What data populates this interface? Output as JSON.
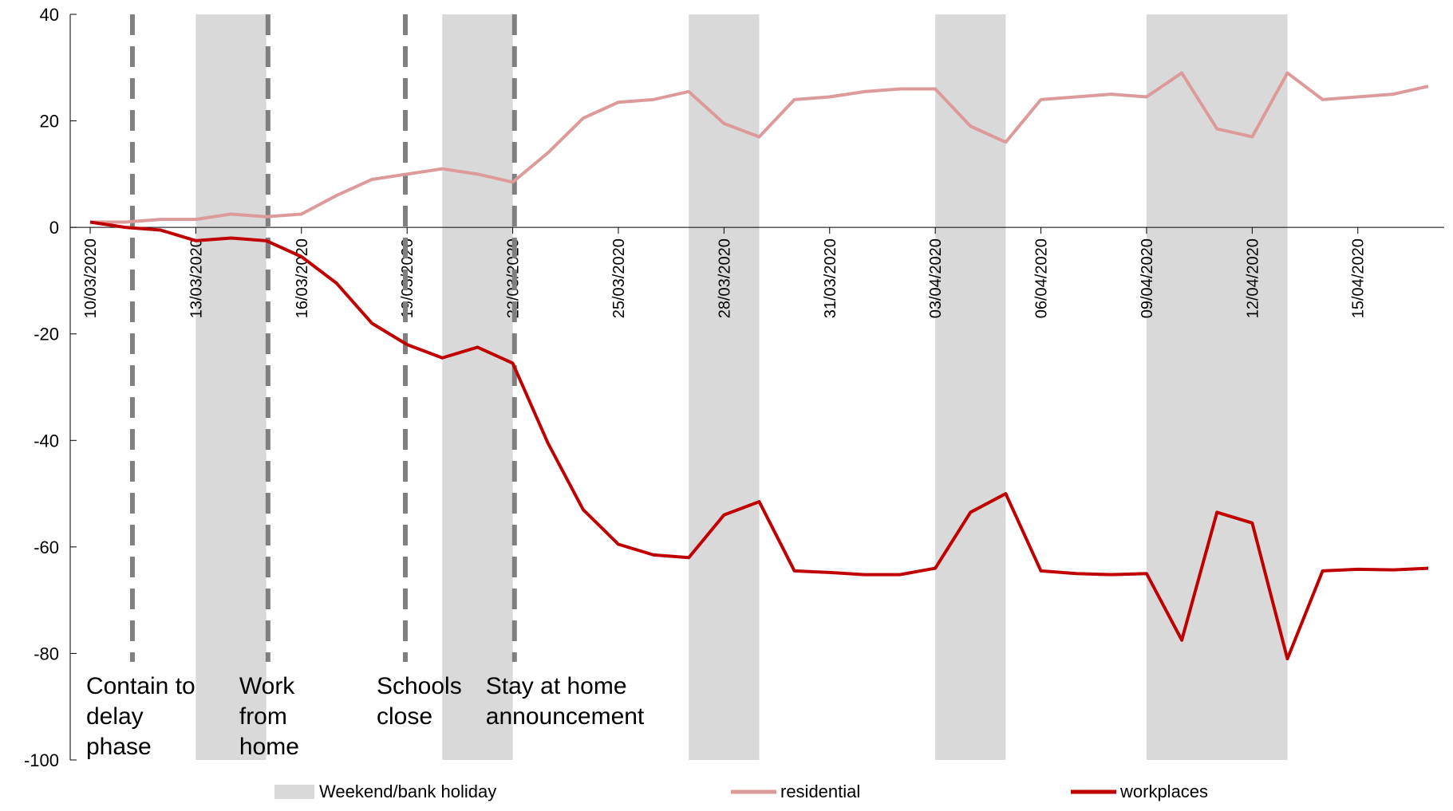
{
  "chart_data": {
    "type": "line",
    "title": "",
    "xlabel": "",
    "ylabel": "",
    "ylim": [
      -100,
      40
    ],
    "yticks": [
      40,
      20,
      0,
      -20,
      -40,
      -60,
      -80,
      -100
    ],
    "xlim": [
      "10/03/2020",
      "17/04/2020"
    ],
    "xtick_labels": [
      "10/03/2020",
      "13/03/2020",
      "16/03/2020",
      "19/03/2020",
      "22/03/2020",
      "25/03/2020",
      "28/03/2020",
      "31/03/2020",
      "03/04/2020",
      "06/04/2020",
      "09/04/2020",
      "12/04/2020",
      "15/04/2020"
    ],
    "x": [
      "10/03/2020",
      "11/03/2020",
      "12/03/2020",
      "13/03/2020",
      "14/03/2020",
      "15/03/2020",
      "16/03/2020",
      "17/03/2020",
      "18/03/2020",
      "19/03/2020",
      "20/03/2020",
      "21/03/2020",
      "22/03/2020",
      "23/03/2020",
      "24/03/2020",
      "25/03/2020",
      "26/03/2020",
      "27/03/2020",
      "28/03/2020",
      "29/03/2020",
      "30/03/2020",
      "31/03/2020",
      "01/04/2020",
      "02/04/2020",
      "03/04/2020",
      "04/04/2020",
      "05/04/2020",
      "06/04/2020",
      "07/04/2020",
      "08/04/2020",
      "09/04/2020",
      "10/04/2020",
      "11/04/2020",
      "12/04/2020",
      "13/04/2020",
      "14/04/2020",
      "15/04/2020",
      "16/04/2020",
      "17/04/2020"
    ],
    "series": [
      {
        "name": "residential",
        "color": "#dd9a9a",
        "values": [
          1,
          1,
          1.5,
          1.5,
          2.5,
          2,
          2.5,
          6,
          9,
          10,
          11,
          10,
          8.5,
          14,
          20.5,
          23.5,
          24,
          25.5,
          19.5,
          17,
          24,
          24.5,
          25.5,
          26,
          26,
          19,
          16,
          24,
          24.5,
          25,
          24.5,
          29,
          18.5,
          17,
          29,
          24,
          24.5,
          25,
          26.5
        ]
      },
      {
        "name": "workplaces",
        "color": "#c00000",
        "values": [
          1,
          0,
          -0.5,
          -2.5,
          -2,
          -2.5,
          -5.5,
          -10.5,
          -18,
          -22,
          -24.5,
          -22.5,
          -25.5,
          -40.5,
          -53,
          -59.5,
          -61.5,
          -62,
          -54,
          -51.5,
          -64.5,
          -64.8,
          -65.2,
          -65.2,
          -64,
          -53.5,
          -50,
          -64.5,
          -65,
          -65.2,
          -65,
          -77.5,
          -53.5,
          -55.5,
          -81,
          -64.5,
          -64.2,
          -64.3,
          -64
        ]
      }
    ],
    "shaded_ranges": [
      {
        "from": "13/03/2020",
        "to": "15/03/2020"
      },
      {
        "from": "20/03/2020",
        "to": "22/03/2020"
      },
      {
        "from": "27/03/2020",
        "to": "29/03/2020"
      },
      {
        "from": "03/04/2020",
        "to": "05/04/2020"
      },
      {
        "from": "09/04/2020",
        "to": "13/04/2020"
      }
    ],
    "shaded_color": "#d9d9d9",
    "events": [
      {
        "date": "11/03/2020",
        "lines": [
          "Contain to",
          "delay",
          "phase"
        ]
      },
      {
        "date": "15/03/2020",
        "lines": [
          "Work",
          "from",
          "home"
        ]
      },
      {
        "date": "19/03/2020",
        "lines": [
          "Schools",
          "close"
        ]
      },
      {
        "date": "22/03/2020",
        "lines": [
          "Stay at home",
          "announcement"
        ]
      }
    ],
    "event_line_color": "#808080",
    "legend": {
      "position": "bottom",
      "items": [
        {
          "label": "Weekend/bank holiday",
          "kind": "box",
          "color": "#d9d9d9"
        },
        {
          "label": "residential",
          "kind": "line",
          "color": "#dd9a9a"
        },
        {
          "label": "workplaces",
          "kind": "line",
          "color": "#c00000"
        }
      ]
    }
  }
}
